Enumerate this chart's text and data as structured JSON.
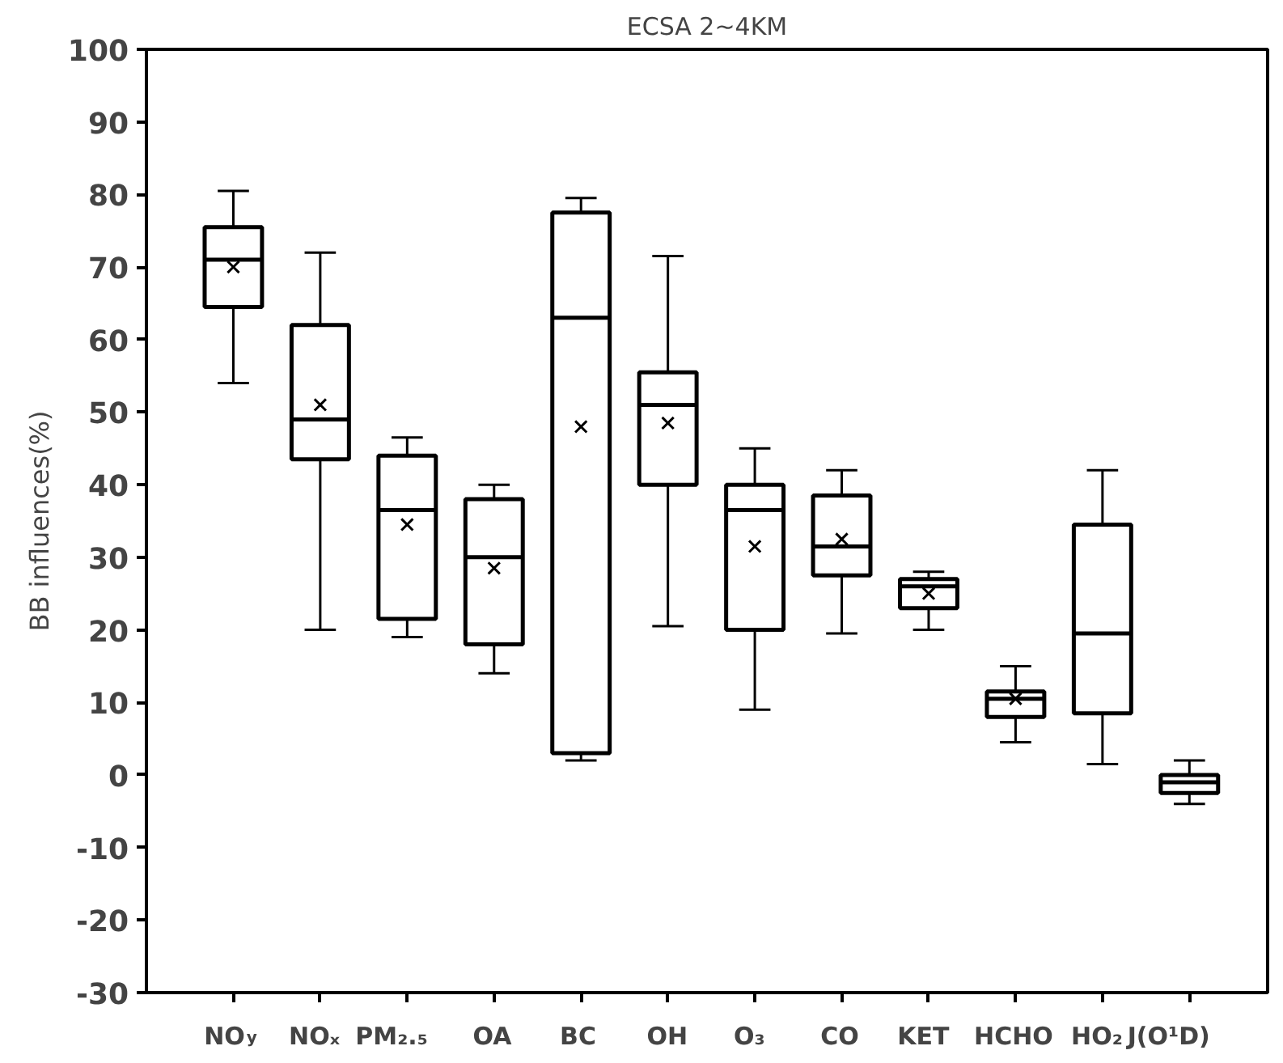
{
  "chart_data": {
    "type": "box",
    "title": "ECSA 2~4KM",
    "ylabel": "BB influences(%)",
    "categories": [
      "NO$_{y}$",
      "NOₓ",
      "PM₂.₅",
      "OA",
      "BC",
      "OH",
      "O₃",
      "CO",
      "KET",
      "HCHO",
      "HO₂",
      "J(O¹D)"
    ],
    "boxes": [
      {
        "low": 54,
        "q1": 64.5,
        "median": 71,
        "q3": 75.5,
        "high": 80.5,
        "mean": 70
      },
      {
        "low": 20,
        "q1": 43.5,
        "median": 49,
        "q3": 62,
        "high": 72,
        "mean": 51
      },
      {
        "low": 19,
        "q1": 21.5,
        "median": 36.5,
        "q3": 44,
        "high": 46.5,
        "mean": 34.5
      },
      {
        "low": 14,
        "q1": 18,
        "median": 30,
        "q3": 38,
        "high": 40,
        "mean": 28.5
      },
      {
        "low": 2,
        "q1": 3,
        "median": 63,
        "q3": 77.5,
        "high": 79.5,
        "mean": 48
      },
      {
        "low": 20.5,
        "q1": 40,
        "median": 51,
        "q3": 55.5,
        "high": 71.5,
        "mean": 48.5
      },
      {
        "low": 9,
        "q1": 20,
        "median": 36.5,
        "q3": 40,
        "high": 45,
        "mean": 31.5
      },
      {
        "low": 19.5,
        "q1": 27.5,
        "median": 31.5,
        "q3": 38.5,
        "high": 42,
        "mean": 32.5
      },
      {
        "low": 20,
        "q1": 23,
        "median": 26,
        "q3": 27,
        "high": 28,
        "mean": 25
      },
      {
        "low": 4.5,
        "q1": 8,
        "median": 10.5,
        "q3": 11.5,
        "high": 15,
        "mean": 10.5
      },
      {
        "low": 1.5,
        "q1": 8.5,
        "median": 19.5,
        "q3": 34.5,
        "high": 42
      },
      {
        "low": -4,
        "q1": -2.5,
        "median": -1,
        "q3": 0,
        "high": 2
      }
    ],
    "color": "#000000",
    "marker": "cross",
    "ylim": [
      -30,
      100
    ],
    "yticks": [
      -30,
      -20,
      -10,
      0,
      10,
      20,
      30,
      40,
      50,
      60,
      70,
      80,
      90,
      100
    ],
    "grid": false
  }
}
